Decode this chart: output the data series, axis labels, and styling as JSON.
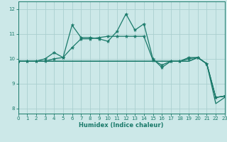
{
  "xlabel": "Humidex (Indice chaleur)",
  "xlim": [
    0,
    23
  ],
  "ylim": [
    7.8,
    12.3
  ],
  "yticks": [
    8,
    9,
    10,
    11,
    12
  ],
  "xticks": [
    0,
    1,
    2,
    3,
    4,
    5,
    6,
    7,
    8,
    9,
    10,
    11,
    12,
    13,
    14,
    15,
    16,
    17,
    18,
    19,
    20,
    21,
    22,
    23
  ],
  "bg_color": "#cce8e8",
  "grid_color": "#aacfcf",
  "line_color": "#1a7a6a",
  "s1": [
    9.9,
    9.9,
    9.9,
    9.9,
    10.0,
    10.05,
    11.35,
    10.85,
    10.85,
    10.8,
    10.7,
    11.1,
    11.8,
    11.15,
    11.4,
    10.0,
    9.65,
    9.9,
    9.9,
    10.05,
    10.05,
    9.8,
    8.45,
    8.5
  ],
  "s2": [
    9.9,
    9.9,
    9.9,
    9.9,
    9.9,
    9.9,
    9.9,
    9.9,
    9.9,
    9.9,
    9.9,
    9.9,
    9.9,
    9.9,
    9.9,
    9.9,
    9.9,
    9.9,
    9.9,
    9.9,
    10.05,
    9.8,
    8.45,
    8.5
  ],
  "s3": [
    9.9,
    9.9,
    9.9,
    9.9,
    9.9,
    9.9,
    9.9,
    9.9,
    9.9,
    9.9,
    9.9,
    9.9,
    9.9,
    9.9,
    9.9,
    9.9,
    9.9,
    9.9,
    9.9,
    9.9,
    10.05,
    9.8,
    8.2,
    8.45
  ],
  "s4": [
    9.9,
    9.9,
    9.9,
    10.0,
    10.25,
    10.05,
    10.45,
    10.8,
    10.8,
    10.85,
    10.9,
    10.9,
    10.9,
    10.9,
    10.9,
    9.95,
    9.75,
    9.9,
    9.9,
    10.0,
    10.05,
    9.8,
    8.45,
    8.5
  ]
}
